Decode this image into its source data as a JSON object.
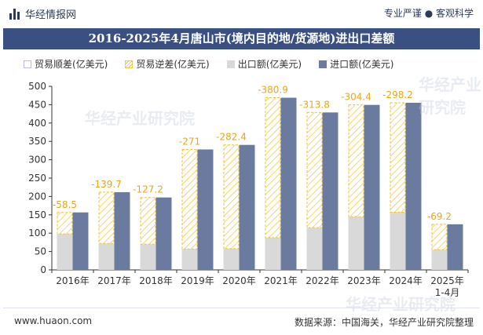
{
  "header": {
    "brand": "华经情报网",
    "tagline": "专业严谨 ● 客观科学"
  },
  "watermarks": [
    "华经产业研究院",
    "华经产业研究院",
    "华经产业研究院"
  ],
  "footer": {
    "website": "www.huaon.com",
    "source": "数据来源：中国海关，华经产业研究院整理"
  },
  "colors": {
    "title_bar": "#3a4f82",
    "import": "#6b7ba0",
    "export": "#d9d9d9",
    "deficit": "#f2c232"
  },
  "chart_data": {
    "type": "bar",
    "title": "2016-2025年4月唐山市(境内目的地/货源地)进出口差额",
    "categories": [
      "2016年",
      "2017年",
      "2018年",
      "2019年",
      "2020年",
      "2021年",
      "2022年",
      "2023年",
      "2024年",
      "2025年\n1-4月"
    ],
    "series": [
      {
        "name": "贸易顺差(亿美元)",
        "values": [
          0,
          0,
          0,
          0,
          0,
          0,
          0,
          0,
          0,
          0
        ]
      },
      {
        "name": "贸易逆差(亿美元)",
        "values": [
          -58.5,
          -139.7,
          -127.2,
          -271,
          -282.4,
          -380.9,
          -313.8,
          -304.4,
          -298.2,
          -69.2
        ]
      },
      {
        "name": "出口额(亿美元)",
        "values": [
          98,
          72,
          70,
          57,
          58,
          88,
          115,
          145,
          157,
          55
        ]
      },
      {
        "name": "进口额(亿美元)",
        "values": [
          156.5,
          211.7,
          197.2,
          328,
          340.4,
          468.9,
          428.8,
          449.4,
          455.2,
          124.2
        ]
      }
    ],
    "data_labels": [
      "-58.5",
      "-139.7",
      "-127.2",
      "-271",
      "-282.4",
      "-380.9",
      "-313.8",
      "-304.4",
      "-298.2",
      "-69.2"
    ],
    "y_ticks": [
      "0",
      "50",
      "100",
      "150",
      "200",
      "250",
      "300",
      "350",
      "400",
      "450",
      "500"
    ],
    "ylim": [
      0,
      500
    ],
    "legend_position": "top-left",
    "grid": false
  }
}
